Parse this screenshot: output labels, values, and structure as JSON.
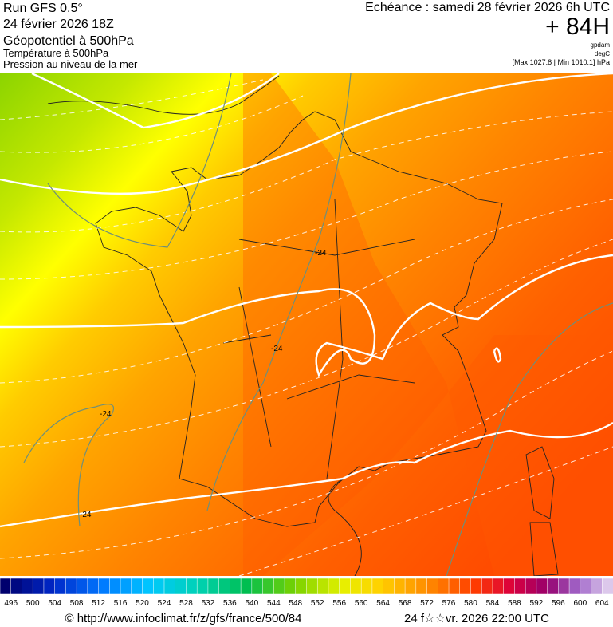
{
  "header": {
    "run": "Run GFS 0.5°",
    "run_date": "24 février 2026 18Z",
    "field1": "Géopotentiel à 500hPa",
    "field2": "Température à 500hPa",
    "field3": "Pression au niveau de la mer",
    "echeance": "Echéance : samedi 28 février 2026 6h UTC",
    "lead": "+ 84H",
    "unit1": "gpdam",
    "unit2": "degC",
    "pressure_range": "[Max 1027.8 | Min 1010.1] hPa"
  },
  "map": {
    "contour_labels": [
      "-24",
      "-24",
      "-24",
      "-24"
    ]
  },
  "colorbar": {
    "labels": [
      496,
      500,
      504,
      508,
      512,
      516,
      520,
      524,
      528,
      532,
      536,
      540,
      544,
      548,
      552,
      556,
      560,
      564,
      568,
      572,
      576,
      580,
      584,
      588,
      592,
      596,
      600,
      604
    ]
  },
  "footer": {
    "url": "© http://www.infoclimat.fr/z/gfs/france/500/84",
    "timestamp": "24 f☆☆vr. 2026 22:00 UTC"
  }
}
